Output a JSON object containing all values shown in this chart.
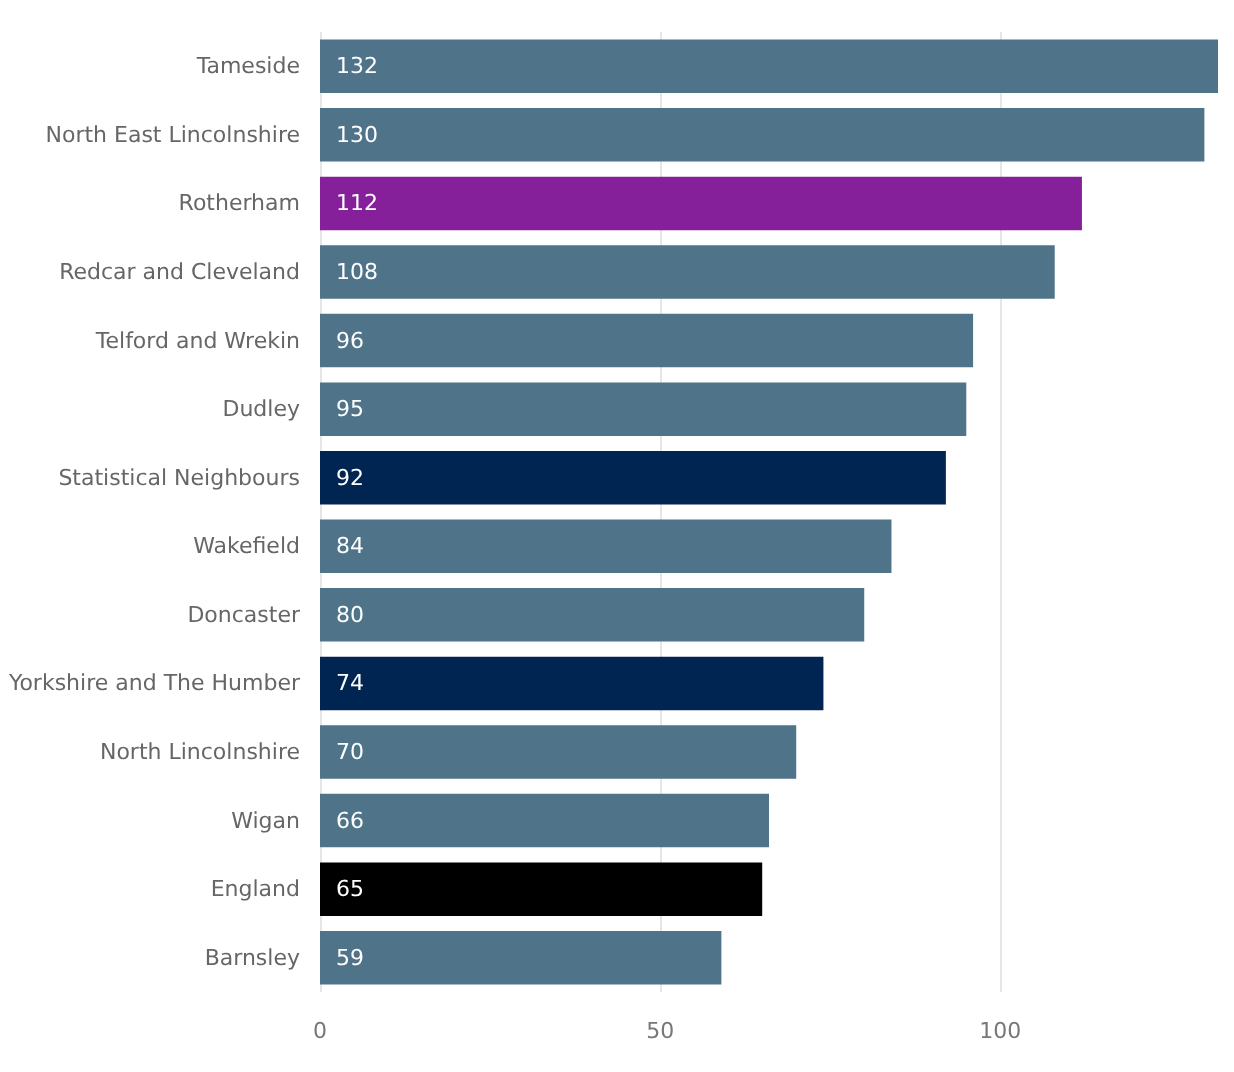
{
  "chart_data": {
    "type": "bar",
    "orientation": "horizontal",
    "categories": [
      "Tameside",
      "North East Lincolnshire",
      "Rotherham",
      "Redcar and Cleveland",
      "Telford and Wrekin",
      "Dudley",
      "Statistical Neighbours",
      "Wakefield",
      "Doncaster",
      "Yorkshire and The Humber",
      "North Lincolnshire",
      "Wigan",
      "England",
      "Barnsley"
    ],
    "values": [
      132,
      130,
      112,
      108,
      96,
      95,
      92,
      84,
      80,
      74,
      70,
      66,
      65,
      59
    ],
    "colors": [
      "#4f7389",
      "#4f7389",
      "#86209a",
      "#4f7389",
      "#4f7389",
      "#4f7389",
      "#002552",
      "#4f7389",
      "#4f7389",
      "#002552",
      "#4f7389",
      "#4f7389",
      "#000000",
      "#4f7389"
    ],
    "xlim": [
      0,
      132
    ],
    "xticks": [
      0,
      50,
      100
    ],
    "grid": "x",
    "data_labels": true
  }
}
